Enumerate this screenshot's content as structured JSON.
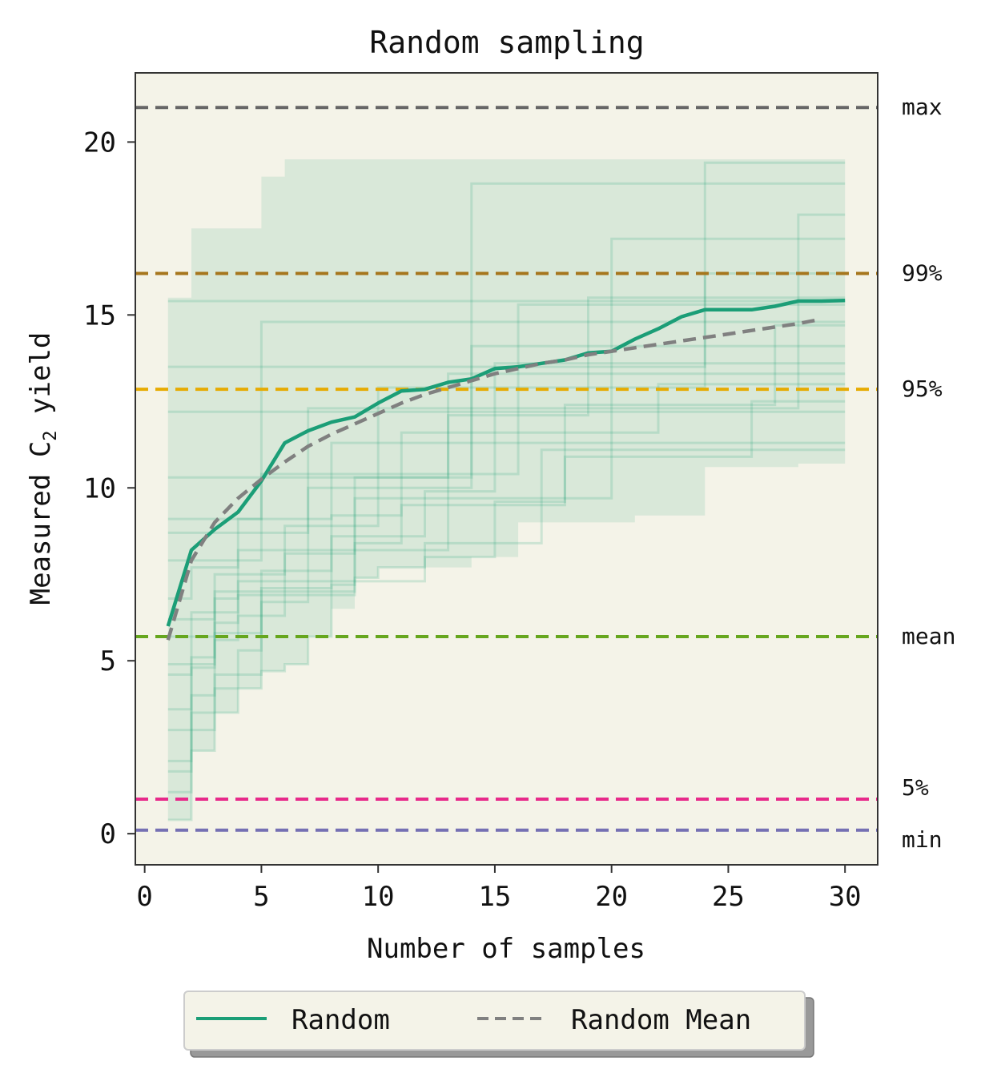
{
  "chart_data": {
    "type": "line",
    "title": "Random sampling",
    "xlabel": "Number of samples",
    "ylabel_main": "Measured C",
    "ylabel_sub": "2",
    "ylabel_tail": " yield",
    "xlim": [
      -0.4,
      31.4
    ],
    "ylim": [
      -0.9,
      22.0
    ],
    "xticks": [
      0,
      5,
      10,
      15,
      20,
      25,
      30
    ],
    "xtick_labels": [
      "0",
      "5",
      "10",
      "15",
      "20",
      "25",
      "30"
    ],
    "yticks": [
      0,
      5,
      10,
      15,
      20
    ],
    "ytick_labels": [
      "0",
      "5",
      "10",
      "15",
      "20"
    ],
    "reference_lines": [
      {
        "label": "max",
        "value": 21.0,
        "color": "#666666"
      },
      {
        "label": "99%",
        "value": 16.2,
        "color": "#a6761d"
      },
      {
        "label": "95%",
        "value": 12.85,
        "color": "#e6ab02"
      },
      {
        "label": "mean",
        "value": 5.7,
        "color": "#66a61e"
      },
      {
        "label": "5%",
        "value": 1.0,
        "color": "#e7298a"
      },
      {
        "label": "min",
        "value": 0.1,
        "color": "#7570b3"
      }
    ],
    "band": {
      "x": [
        1,
        2,
        3,
        4,
        5,
        6,
        7,
        8,
        9,
        10,
        11,
        12,
        13,
        14,
        15,
        16,
        17,
        18,
        19,
        20,
        21,
        22,
        23,
        24,
        25,
        26,
        27,
        28,
        29,
        30
      ],
      "upper": [
        15.5,
        17.5,
        17.5,
        17.5,
        19.0,
        19.5,
        19.5,
        19.5,
        19.5,
        19.5,
        19.5,
        19.5,
        19.5,
        19.5,
        19.5,
        19.5,
        19.5,
        19.5,
        19.5,
        19.5,
        19.5,
        19.5,
        19.5,
        19.5,
        19.5,
        19.5,
        19.5,
        19.5,
        19.5,
        19.5
      ],
      "lower": [
        0.4,
        2.4,
        3.5,
        4.2,
        4.7,
        4.9,
        5.7,
        6.5,
        7.4,
        7.7,
        7.7,
        7.7,
        7.7,
        8.0,
        8.0,
        9.0,
        9.0,
        9.0,
        9.0,
        9.0,
        9.2,
        9.2,
        9.2,
        10.6,
        10.6,
        10.6,
        10.6,
        10.7,
        10.7,
        10.7
      ],
      "color": "#1b9e77"
    },
    "sample_traces": [
      [
        0.4,
        2.4,
        4.2,
        4.2,
        4.7,
        4.9,
        5.7,
        7.2,
        7.4,
        7.7,
        7.7,
        8.0,
        8.0,
        8.0,
        9.6,
        9.6,
        9.6,
        10.9,
        10.9,
        10.9,
        10.9,
        10.9,
        10.9,
        10.9,
        10.9,
        12.5,
        12.5,
        12.5,
        12.5,
        12.5
      ],
      [
        1.2,
        3.5,
        3.5,
        5.3,
        7.1,
        7.1,
        7.1,
        8.6,
        8.6,
        8.6,
        8.6,
        9.9,
        9.9,
        9.9,
        13.6,
        13.6,
        13.6,
        13.6,
        13.6,
        13.6,
        13.6,
        13.6,
        13.6,
        13.6,
        13.6,
        13.6,
        13.6,
        13.6,
        13.6,
        13.6
      ],
      [
        2.1,
        4.8,
        5.6,
        6.3,
        6.3,
        8.1,
        8.1,
        8.1,
        10.3,
        10.3,
        10.3,
        10.3,
        12.1,
        12.1,
        12.1,
        12.1,
        12.1,
        12.1,
        15.5,
        15.5,
        15.5,
        15.5,
        15.5,
        15.5,
        15.5,
        15.5,
        15.5,
        15.5,
        15.5,
        15.5
      ],
      [
        3.0,
        3.0,
        5.8,
        5.8,
        7.6,
        7.6,
        7.6,
        9.2,
        9.2,
        9.2,
        11.6,
        11.6,
        11.6,
        11.6,
        11.6,
        11.6,
        11.6,
        11.6,
        11.6,
        11.6,
        11.6,
        13.0,
        13.0,
        13.0,
        13.0,
        13.0,
        13.0,
        13.0,
        13.0,
        13.0
      ],
      [
        4.6,
        6.4,
        6.4,
        7.3,
        7.3,
        7.3,
        10.0,
        10.0,
        10.0,
        10.0,
        10.0,
        10.0,
        10.0,
        14.1,
        14.1,
        14.1,
        14.1,
        14.1,
        14.1,
        14.1,
        14.1,
        14.1,
        14.1,
        14.1,
        14.1,
        14.1,
        14.1,
        14.1,
        14.1,
        14.1
      ],
      [
        5.7,
        5.7,
        7.5,
        7.5,
        7.5,
        8.9,
        8.9,
        8.9,
        8.9,
        12.9,
        12.9,
        12.9,
        12.9,
        12.9,
        12.9,
        12.9,
        12.9,
        12.9,
        12.9,
        12.9,
        12.9,
        12.9,
        12.9,
        16.2,
        16.2,
        16.2,
        16.2,
        16.2,
        16.2,
        16.2
      ],
      [
        6.8,
        7.7,
        7.7,
        9.1,
        9.1,
        9.1,
        9.1,
        11.3,
        11.3,
        11.3,
        11.3,
        11.3,
        11.3,
        11.3,
        11.3,
        11.3,
        11.3,
        11.3,
        11.3,
        11.3,
        11.3,
        11.3,
        11.3,
        11.3,
        11.3,
        11.3,
        11.3,
        11.3,
        11.3,
        11.3
      ],
      [
        7.9,
        7.9,
        7.9,
        7.9,
        10.4,
        10.4,
        10.4,
        10.4,
        10.4,
        10.4,
        10.4,
        10.4,
        10.4,
        10.4,
        10.4,
        15.3,
        15.3,
        15.3,
        15.3,
        15.3,
        15.3,
        15.3,
        15.3,
        15.3,
        15.3,
        15.3,
        15.3,
        15.3,
        15.3,
        15.3
      ],
      [
        8.7,
        8.7,
        8.7,
        8.7,
        8.7,
        8.7,
        12.3,
        12.3,
        12.3,
        12.3,
        12.3,
        12.3,
        12.3,
        12.3,
        12.3,
        12.3,
        12.3,
        12.3,
        12.3,
        12.3,
        12.3,
        12.3,
        12.3,
        12.3,
        12.3,
        12.3,
        12.3,
        17.9,
        17.9,
        17.9
      ],
      [
        9.1,
        9.1,
        9.1,
        9.1,
        14.8,
        14.8,
        14.8,
        14.8,
        14.8,
        14.8,
        14.8,
        14.8,
        14.8,
        14.8,
        14.8,
        14.8,
        14.8,
        14.8,
        14.8,
        14.8,
        14.8,
        14.8,
        14.8,
        14.8,
        14.8,
        14.8,
        14.8,
        14.8,
        14.8,
        14.8
      ],
      [
        10.3,
        10.3,
        10.3,
        10.3,
        10.3,
        10.3,
        10.3,
        10.3,
        10.3,
        10.3,
        10.3,
        10.3,
        10.3,
        18.8,
        18.8,
        18.8,
        18.8,
        18.8,
        18.8,
        18.8,
        18.8,
        18.8,
        18.8,
        18.8,
        18.8,
        18.8,
        18.8,
        18.8,
        18.8,
        18.8
      ],
      [
        12.2,
        12.2,
        12.2,
        12.2,
        12.2,
        12.2,
        12.2,
        12.2,
        12.2,
        12.2,
        12.2,
        12.2,
        12.2,
        12.2,
        12.2,
        12.2,
        12.2,
        12.2,
        12.2,
        12.2,
        12.2,
        12.2,
        12.2,
        12.2,
        12.2,
        12.2,
        12.2,
        12.2,
        12.2,
        12.2
      ],
      [
        13.5,
        13.5,
        13.5,
        13.5,
        13.5,
        13.5,
        13.5,
        13.5,
        13.5,
        13.5,
        13.5,
        13.5,
        13.5,
        13.5,
        13.5,
        13.5,
        13.5,
        13.5,
        13.5,
        13.5,
        13.5,
        13.5,
        13.5,
        19.4,
        19.4,
        19.4,
        19.4,
        19.4,
        19.4,
        19.4
      ],
      [
        15.4,
        15.4,
        15.4,
        15.4,
        15.4,
        15.4,
        15.4,
        15.4,
        15.4,
        15.4,
        15.4,
        15.4,
        15.4,
        15.4,
        15.4,
        15.4,
        15.4,
        15.4,
        15.4,
        15.4,
        15.4,
        15.4,
        15.4,
        15.4,
        15.4,
        15.4,
        15.4,
        15.4,
        15.4,
        15.4
      ],
      [
        3.6,
        5.1,
        6.1,
        6.9,
        6.9,
        6.9,
        6.9,
        6.9,
        8.4,
        8.4,
        9.5,
        9.5,
        9.5,
        9.5,
        9.5,
        9.5,
        9.5,
        12.4,
        12.4,
        12.4,
        12.4,
        12.4,
        12.4,
        12.4,
        12.4,
        12.4,
        14.7,
        14.7,
        14.7,
        14.7
      ],
      [
        1.8,
        4.0,
        4.6,
        4.6,
        6.7,
        6.7,
        7.3,
        7.3,
        7.3,
        7.3,
        7.3,
        8.4,
        8.4,
        8.4,
        8.4,
        8.4,
        11.1,
        11.1,
        11.1,
        11.1,
        11.1,
        11.1,
        11.1,
        11.1,
        11.1,
        11.1,
        11.1,
        11.1,
        11.1,
        11.1
      ],
      [
        6.2,
        6.2,
        7.0,
        7.0,
        7.0,
        7.0,
        7.0,
        7.0,
        9.7,
        9.7,
        9.7,
        9.7,
        9.7,
        9.7,
        9.7,
        9.7,
        9.7,
        9.7,
        9.7,
        17.2,
        17.2,
        17.2,
        17.2,
        17.2,
        17.2,
        17.2,
        17.2,
        17.2,
        17.2,
        17.2
      ],
      [
        4.9,
        4.9,
        6.8,
        8.2,
        8.2,
        8.2,
        8.2,
        8.2,
        8.2,
        8.2,
        8.2,
        8.2,
        13.3,
        13.3,
        13.3,
        13.3,
        13.3,
        13.3,
        13.3,
        13.3,
        13.3,
        13.3,
        13.3,
        13.3,
        13.3,
        13.3,
        13.3,
        13.3,
        13.3,
        13.3
      ]
    ],
    "series": [
      {
        "name": "Random",
        "style": "solid",
        "color": "#1b9e77",
        "x": [
          1,
          2,
          3,
          4,
          5,
          6,
          7,
          8,
          9,
          10,
          11,
          12,
          13,
          14,
          15,
          16,
          17,
          18,
          19,
          20,
          21,
          22,
          23,
          24,
          25,
          26,
          27,
          28,
          29,
          30
        ],
        "values": [
          6.0,
          8.2,
          8.8,
          9.3,
          10.2,
          11.3,
          11.65,
          11.9,
          12.05,
          12.45,
          12.8,
          12.85,
          13.05,
          13.15,
          13.45,
          13.5,
          13.6,
          13.7,
          13.9,
          13.95,
          14.3,
          14.6,
          14.95,
          15.15,
          15.15,
          15.15,
          15.25,
          15.4,
          15.4,
          15.42
        ]
      },
      {
        "name": "Random Mean",
        "style": "dashed",
        "color": "#808080",
        "x": [
          1,
          2,
          3,
          4,
          5,
          6,
          7,
          8,
          9,
          10,
          11,
          12,
          13,
          14,
          15,
          16,
          17,
          18,
          19,
          20,
          21,
          22,
          23,
          24,
          25,
          26,
          27,
          28,
          29
        ],
        "values": [
          5.6,
          7.9,
          9.0,
          9.7,
          10.25,
          10.75,
          11.2,
          11.55,
          11.85,
          12.15,
          12.45,
          12.7,
          12.9,
          13.1,
          13.3,
          13.45,
          13.6,
          13.7,
          13.85,
          13.95,
          14.05,
          14.15,
          14.25,
          14.35,
          14.45,
          14.55,
          14.65,
          14.75,
          14.88
        ]
      }
    ],
    "legend_position": "bottom-center",
    "colors": {
      "plot_background": "#f4f3e8",
      "axes": "#333333"
    }
  }
}
